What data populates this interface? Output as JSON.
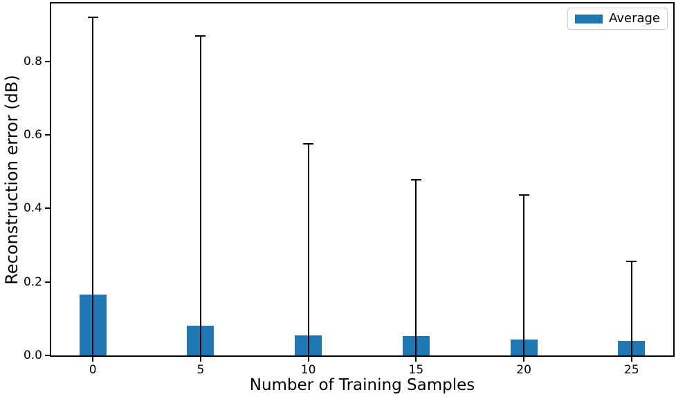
{
  "chart_data": {
    "type": "bar",
    "title": "",
    "xlabel": "Number of Training Samples",
    "ylabel": "Reconstruction error (dB)",
    "categories": [
      0,
      5,
      10,
      15,
      20,
      25
    ],
    "xticks": [
      "0",
      "5",
      "10",
      "15",
      "20",
      "25"
    ],
    "yticks": [
      "0.0",
      "0.2",
      "0.4",
      "0.6",
      "0.8"
    ],
    "ytick_values": [
      0.0,
      0.2,
      0.4,
      0.6,
      0.8
    ],
    "series": [
      {
        "name": "Average",
        "color": "#1f77b4",
        "values": [
          0.165,
          0.081,
          0.055,
          0.052,
          0.044,
          0.04
        ]
      }
    ],
    "error_bars": {
      "color": "#000000",
      "min": [
        0,
        0,
        0,
        0,
        0,
        0
      ],
      "max": [
        0.92,
        0.87,
        0.576,
        0.478,
        0.436,
        0.256
      ]
    },
    "xlim": [
      -1.93,
      26.93
    ],
    "ylim": [
      0,
      0.958
    ],
    "bar_width_units": 1.25,
    "grid": false,
    "legend": {
      "position": "upper-right",
      "entries": [
        {
          "label": "Average",
          "color": "#1f77b4"
        }
      ]
    }
  }
}
